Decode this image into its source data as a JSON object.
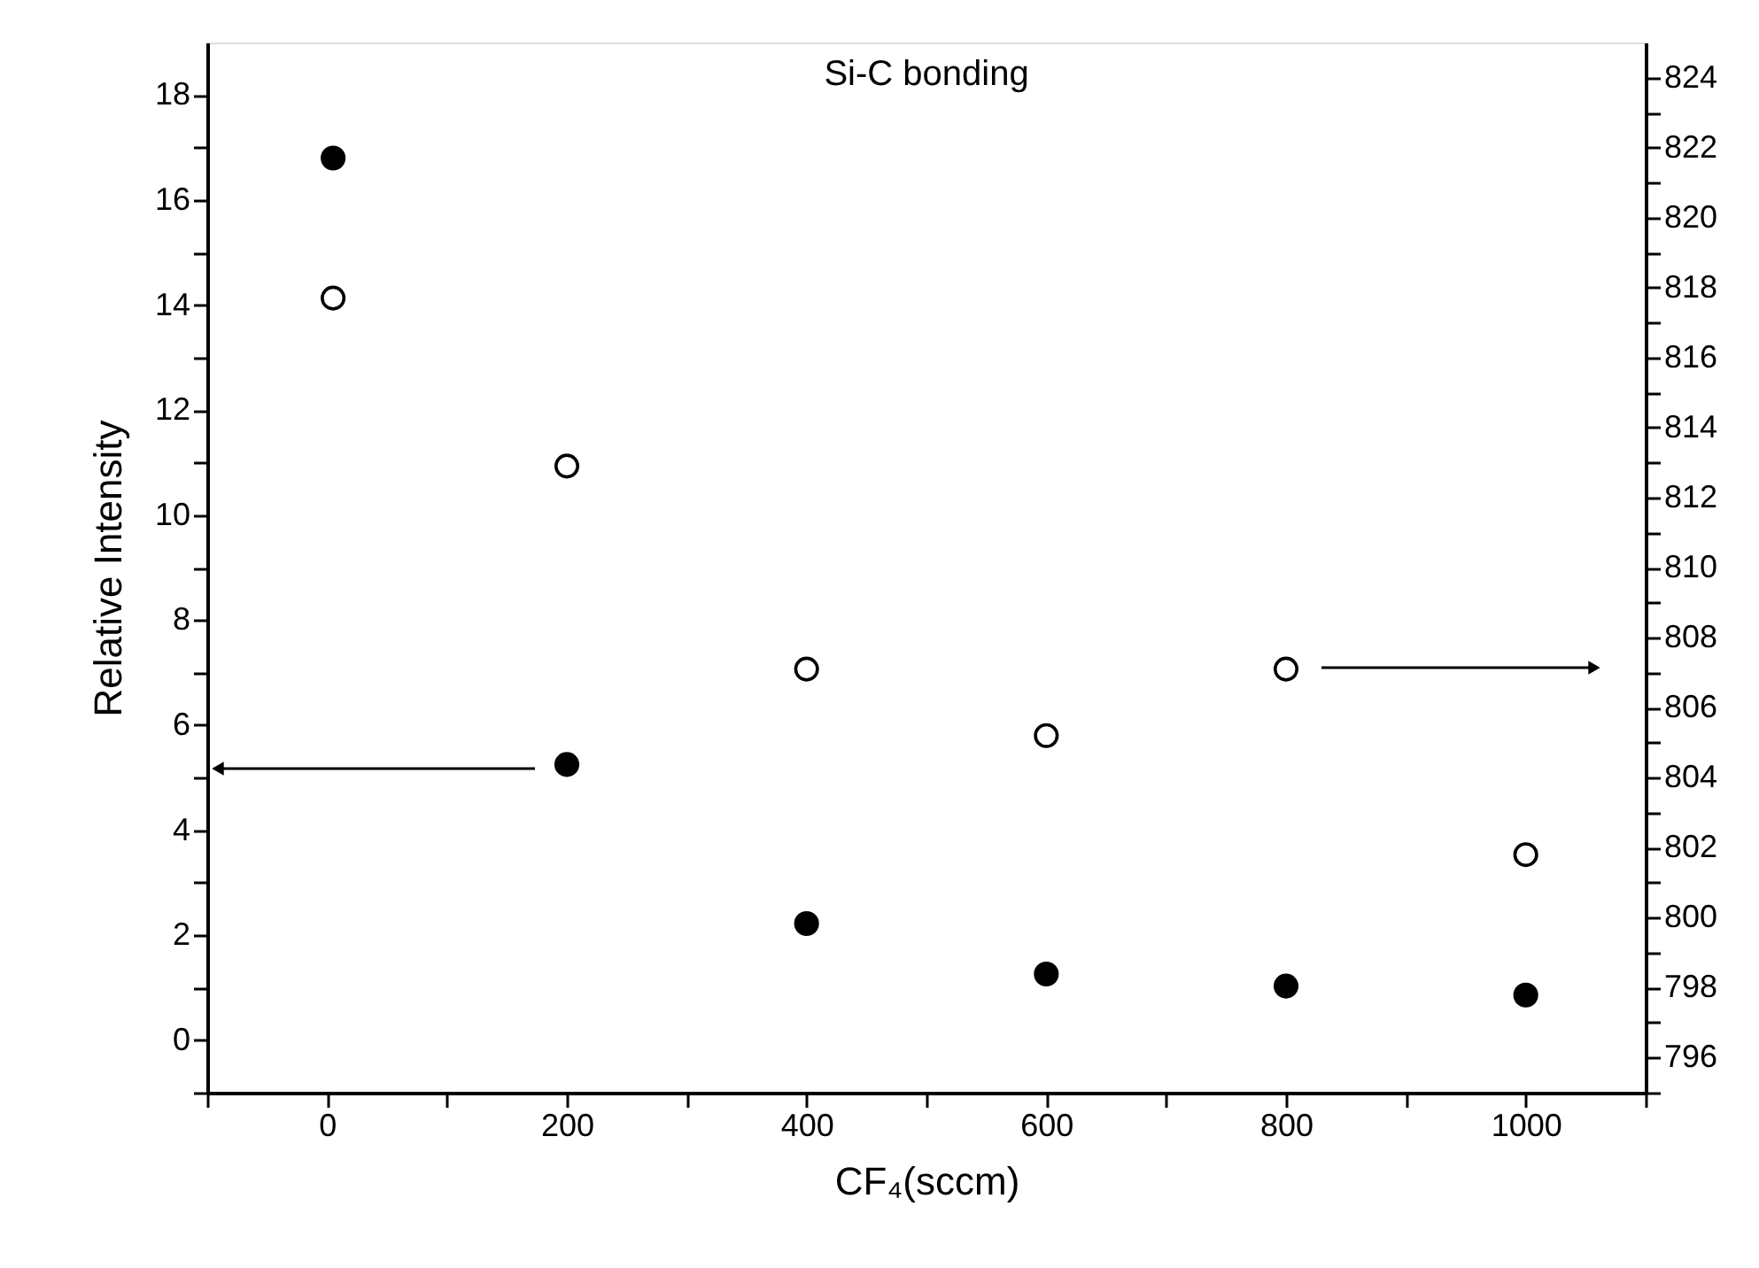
{
  "chart_data": {
    "type": "scatter",
    "title": "Si-C bonding",
    "xlabel": "CF₄(sccm)",
    "ylabel": "Relative Intensity",
    "x": [
      5,
      200,
      400,
      600,
      800,
      1000
    ],
    "series": [
      {
        "color": "#000000",
        "values": [
          16.8,
          5.25,
          2.22,
          1.26,
          1.03,
          0.86
        ]
      },
      {
        "color": "#000000",
        "axis": "y2",
        "values": [
          817.7,
          812.9,
          807.1,
          805.2,
          807.1,
          801.8
        ]
      }
    ],
    "marker": "circle",
    "xlim": [
      -100,
      1100
    ],
    "xticks": [
      {
        "value": -100,
        "label": null
      },
      0,
      {
        "value": 100,
        "label": null
      },
      200,
      {
        "value": 300,
        "label": null
      },
      400,
      {
        "value": 500,
        "label": null
      },
      600,
      {
        "value": 700,
        "label": null
      },
      800,
      {
        "value": 900,
        "label": null
      },
      1000,
      {
        "value": 1100,
        "label": null
      }
    ],
    "ylim": [
      -1,
      19
    ],
    "yticks": [
      {
        "value": -1,
        "label": null
      },
      0,
      {
        "value": 1,
        "label": null
      },
      2,
      {
        "value": 3,
        "label": null
      },
      4,
      {
        "value": 5,
        "label": null
      },
      6,
      {
        "value": 7,
        "label": null
      },
      8,
      {
        "value": 9,
        "label": null
      },
      10,
      {
        "value": 11,
        "label": null
      },
      12,
      {
        "value": 13,
        "label": null
      },
      14,
      {
        "value": 15,
        "label": null
      },
      16,
      {
        "value": 17,
        "label": null
      },
      18
    ],
    "y2lim": [
      795,
      825
    ],
    "y2ticks": [
      {
        "value": 795,
        "label": null
      },
      796,
      {
        "value": 797,
        "label": null
      },
      798,
      {
        "value": 799,
        "label": null
      },
      800,
      {
        "value": 801,
        "label": null
      },
      802,
      {
        "value": 803,
        "label": null
      },
      804,
      {
        "value": 805,
        "label": null
      },
      806,
      {
        "value": 807,
        "label": null
      },
      808,
      {
        "value": 809,
        "label": null
      },
      810,
      {
        "value": 811,
        "label": null
      },
      812,
      {
        "value": 813,
        "label": null
      },
      814,
      {
        "value": 815,
        "label": null
      },
      816,
      {
        "value": 817,
        "label": null
      },
      818,
      {
        "value": 819,
        "label": null
      },
      820,
      {
        "value": 821,
        "label": null
      },
      822,
      {
        "value": 823,
        "label": null
      },
      824
    ],
    "grid": false
  }
}
